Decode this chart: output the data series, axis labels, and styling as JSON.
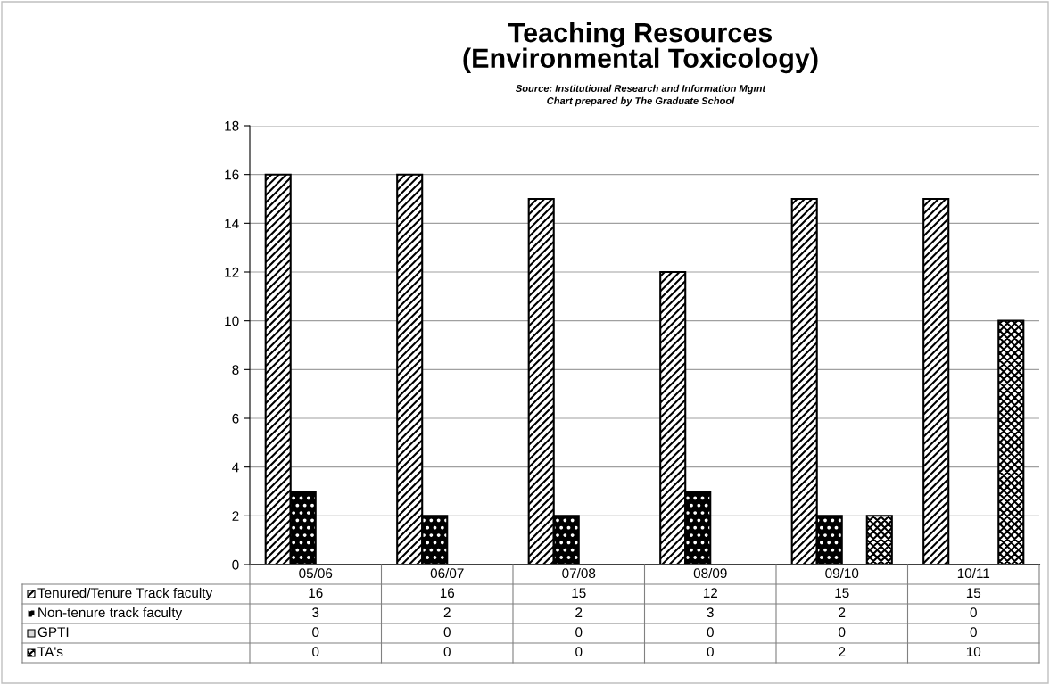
{
  "chart_data": {
    "type": "bar",
    "title": "Teaching Resources\n(Environmental Toxicology)",
    "annotations": [
      "Source: Institutional Research and Information Mgmt",
      "Chart prepared by The Graduate School"
    ],
    "categories": [
      "05/06",
      "06/07",
      "07/08",
      "08/09",
      "09/10",
      "10/11"
    ],
    "series": [
      {
        "name": "Tenured/Tenure Track faculty",
        "color": "#ffffff",
        "values": [
          16,
          16,
          15,
          12,
          15,
          15
        ]
      },
      {
        "name": "Non-tenure track faculty",
        "color": "#000000",
        "values": [
          3,
          2,
          2,
          3,
          2,
          0
        ]
      },
      {
        "name": "GPTI",
        "color": "#d9d9d9",
        "values": [
          0,
          0,
          0,
          0,
          0,
          0
        ]
      },
      {
        "name": "TA's",
        "color": "#ffffff",
        "values": [
          0,
          0,
          0,
          0,
          2,
          10
        ]
      }
    ],
    "ylim": [
      0,
      18
    ],
    "yticks": [
      0,
      2,
      4,
      6,
      8,
      10,
      12,
      14,
      16,
      18
    ],
    "grid": "y",
    "legend": "bottom",
    "data_labels": true
  }
}
